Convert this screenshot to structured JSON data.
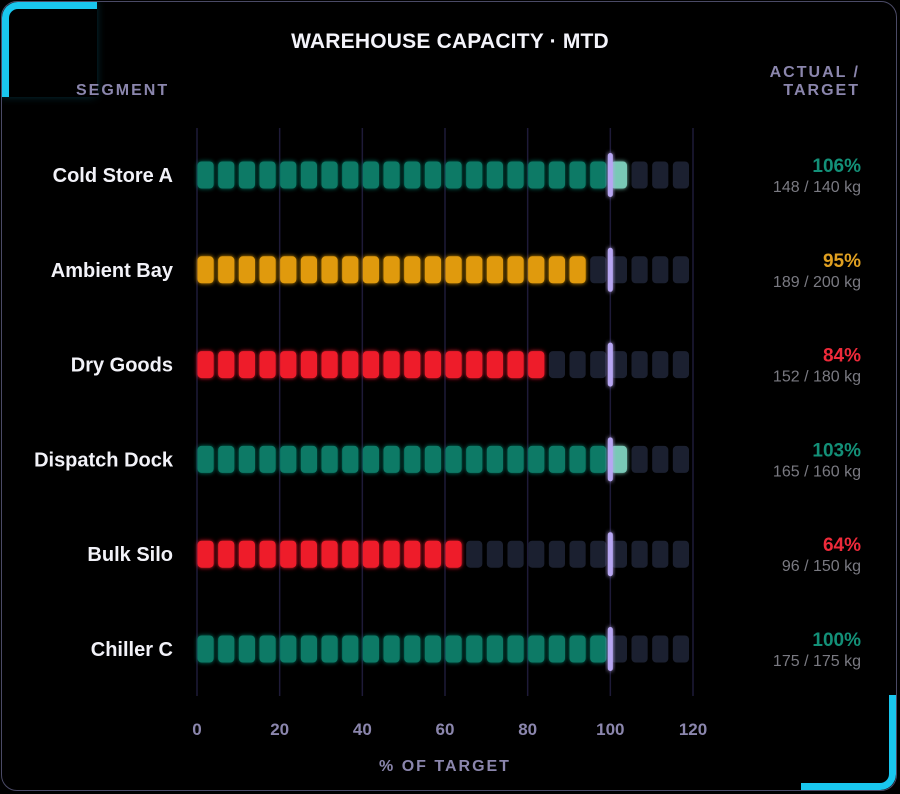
{
  "title": "WAREHOUSE CAPACITY · MTD",
  "headers": {
    "segment": "SEGMENT",
    "actual_line1": "ACTUAL /",
    "actual_line2": "TARGET"
  },
  "colors": {
    "good": "#0a7a66",
    "good_over": "#79c9b6",
    "warn": "#e09a10",
    "bad": "#ee1a2c",
    "empty": "#1b2030",
    "target": "#b7a6f2",
    "grid": "#1e1a38",
    "pct_good": "#139078",
    "pct_warn": "#e0a021",
    "pct_bad": "#ee2a3a"
  },
  "chart_data": {
    "type": "bar",
    "xlabel": "% OF TARGET",
    "xlim": [
      0,
      120
    ],
    "xticks": [
      0,
      20,
      40,
      60,
      80,
      100,
      120
    ],
    "target": 100,
    "categories": [
      "Cold Store A",
      "Ambient Bay",
      "Dry Goods",
      "Dispatch Dock",
      "Bulk Silo",
      "Chiller C"
    ],
    "values": [
      106,
      95,
      84,
      103,
      64,
      100
    ],
    "status": [
      "good",
      "warn",
      "bad",
      "good",
      "bad",
      "good"
    ],
    "pct_labels": [
      "106%",
      "95%",
      "84%",
      "103%",
      "64%",
      "100%"
    ],
    "detail_labels": [
      "148 / 140 kg",
      "189 / 200 kg",
      "152 / 180 kg",
      "165 / 160 kg",
      "96 / 150 kg",
      "175 / 175 kg"
    ]
  }
}
